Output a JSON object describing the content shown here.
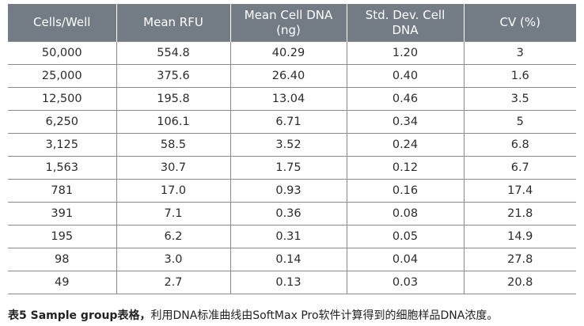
{
  "table": {
    "headers": [
      "Cells/Well",
      "Mean RFU",
      "Mean Cell DNA\n(ng)",
      "Std. Dev. Cell\nDNA",
      "CV (%)"
    ],
    "rows": [
      [
        "50,000",
        "554.8",
        "40.29",
        "1.20",
        "3"
      ],
      [
        "25,000",
        "375.6",
        "26.40",
        "0.40",
        "1.6"
      ],
      [
        "12,500",
        "195.8",
        "13.04",
        "0.46",
        "3.5"
      ],
      [
        "6,250",
        "106.1",
        "6.71",
        "0.34",
        "5"
      ],
      [
        "3,125",
        "58.5",
        "3.52",
        "0.24",
        "6.8"
      ],
      [
        "1,563",
        "30.7",
        "1.75",
        "0.12",
        "6.7"
      ],
      [
        "781",
        "17.0",
        "0.93",
        "0.16",
        "17.4"
      ],
      [
        "391",
        "7.1",
        "0.36",
        "0.08",
        "21.8"
      ],
      [
        "195",
        "6.2",
        "0.31",
        "0.05",
        "14.9"
      ],
      [
        "98",
        "3.0",
        "0.14",
        "0.04",
        "27.8"
      ],
      [
        "49",
        "2.7",
        "0.13",
        "0.03",
        "20.8"
      ]
    ]
  },
  "caption": {
    "bold": "表5 Sample group表格，",
    "text": "利用DNA标准曲线由SoftMax Pro软件计算得到的细胞样品DNA浓度。"
  },
  "colors": {
    "header_bg": "#737b85",
    "header_text": "#ffffff",
    "grid_line": "#8a8a8a"
  }
}
